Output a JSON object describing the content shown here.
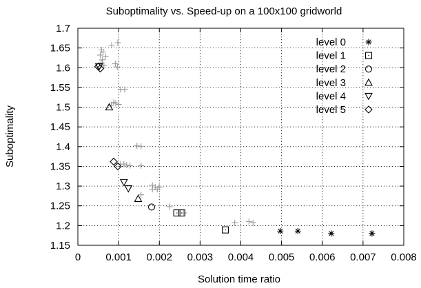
{
  "chart_data": {
    "type": "scatter",
    "title": "Suboptimality vs. Speed-up on a 100x100 gridworld",
    "xlabel": "Solution time ratio",
    "ylabel": "Suboptimality",
    "xlim": [
      0,
      0.008
    ],
    "ylim": [
      1.15,
      1.7
    ],
    "xticks": [
      0,
      0.001,
      0.002,
      0.003,
      0.004,
      0.005,
      0.006,
      0.007,
      0.008
    ],
    "xtick_labels": [
      "0",
      "0.001",
      "0.002",
      "0.003",
      "0.004",
      "0.005",
      "0.006",
      "0.007",
      "0.008"
    ],
    "yticks": [
      1.15,
      1.2,
      1.25,
      1.3,
      1.35,
      1.4,
      1.45,
      1.5,
      1.55,
      1.6,
      1.65,
      1.7
    ],
    "ytick_labels": [
      "1.15",
      "1.2",
      "1.25",
      "1.3",
      "1.35",
      "1.4",
      "1.45",
      "1.5",
      "1.55",
      "1.6",
      "1.65",
      "1.7"
    ],
    "grid": true,
    "legend_position": "top-right",
    "background_series": {
      "color": "#999999",
      "marker": "plus",
      "points": [
        [
          0.00058,
          1.645
        ],
        [
          0.00062,
          1.64
        ],
        [
          0.00055,
          1.632
        ],
        [
          0.00068,
          1.628
        ],
        [
          0.0006,
          1.62
        ],
        [
          0.00057,
          1.612
        ],
        [
          0.00064,
          1.606
        ],
        [
          0.00083,
          1.657
        ],
        [
          0.00098,
          1.663
        ],
        [
          0.00092,
          1.61
        ],
        [
          0.00097,
          1.602
        ],
        [
          0.00105,
          1.545
        ],
        [
          0.00115,
          1.545
        ],
        [
          0.00088,
          1.512
        ],
        [
          0.00093,
          1.51
        ],
        [
          0.001,
          1.507
        ],
        [
          0.00082,
          1.505
        ],
        [
          0.00145,
          1.402
        ],
        [
          0.00155,
          1.401
        ],
        [
          0.00105,
          1.356
        ],
        [
          0.00113,
          1.356
        ],
        [
          0.0012,
          1.353
        ],
        [
          0.00128,
          1.352
        ],
        [
          0.00155,
          1.352
        ],
        [
          0.00183,
          1.302
        ],
        [
          0.0019,
          1.297
        ],
        [
          0.002,
          1.297
        ],
        [
          0.00183,
          1.292
        ],
        [
          0.00195,
          1.292
        ],
        [
          0.00155,
          1.278
        ],
        [
          0.00225,
          1.248
        ],
        [
          0.0026,
          1.232
        ],
        [
          0.00385,
          1.207
        ],
        [
          0.0042,
          1.21
        ],
        [
          0.0043,
          1.207
        ]
      ]
    },
    "series": [
      {
        "name": "level 0",
        "marker": "asterisk",
        "points": [
          [
            0.00497,
            1.186
          ],
          [
            0.0054,
            1.186
          ],
          [
            0.00622,
            1.18
          ],
          [
            0.00722,
            1.18
          ]
        ]
      },
      {
        "name": "level 1",
        "marker": "square",
        "points": [
          [
            0.00243,
            1.232
          ],
          [
            0.00255,
            1.232
          ],
          [
            0.00362,
            1.189
          ]
        ]
      },
      {
        "name": "level 2",
        "marker": "circle",
        "points": [
          [
            0.00181,
            1.247
          ]
        ]
      },
      {
        "name": "level 3",
        "marker": "triangle-up",
        "points": [
          [
            0.00077,
            1.5
          ],
          [
            0.00148,
            1.268
          ]
        ]
      },
      {
        "name": "level 4",
        "marker": "triangle-down",
        "points": [
          [
            0.00052,
            1.603
          ],
          [
            0.00113,
            1.31
          ],
          [
            0.00124,
            1.294
          ]
        ]
      },
      {
        "name": "level 5",
        "marker": "diamond",
        "points": [
          [
            0.0005,
            1.603
          ],
          [
            0.00055,
            1.598
          ],
          [
            0.00088,
            1.362
          ],
          [
            0.00098,
            1.35
          ]
        ]
      }
    ]
  }
}
